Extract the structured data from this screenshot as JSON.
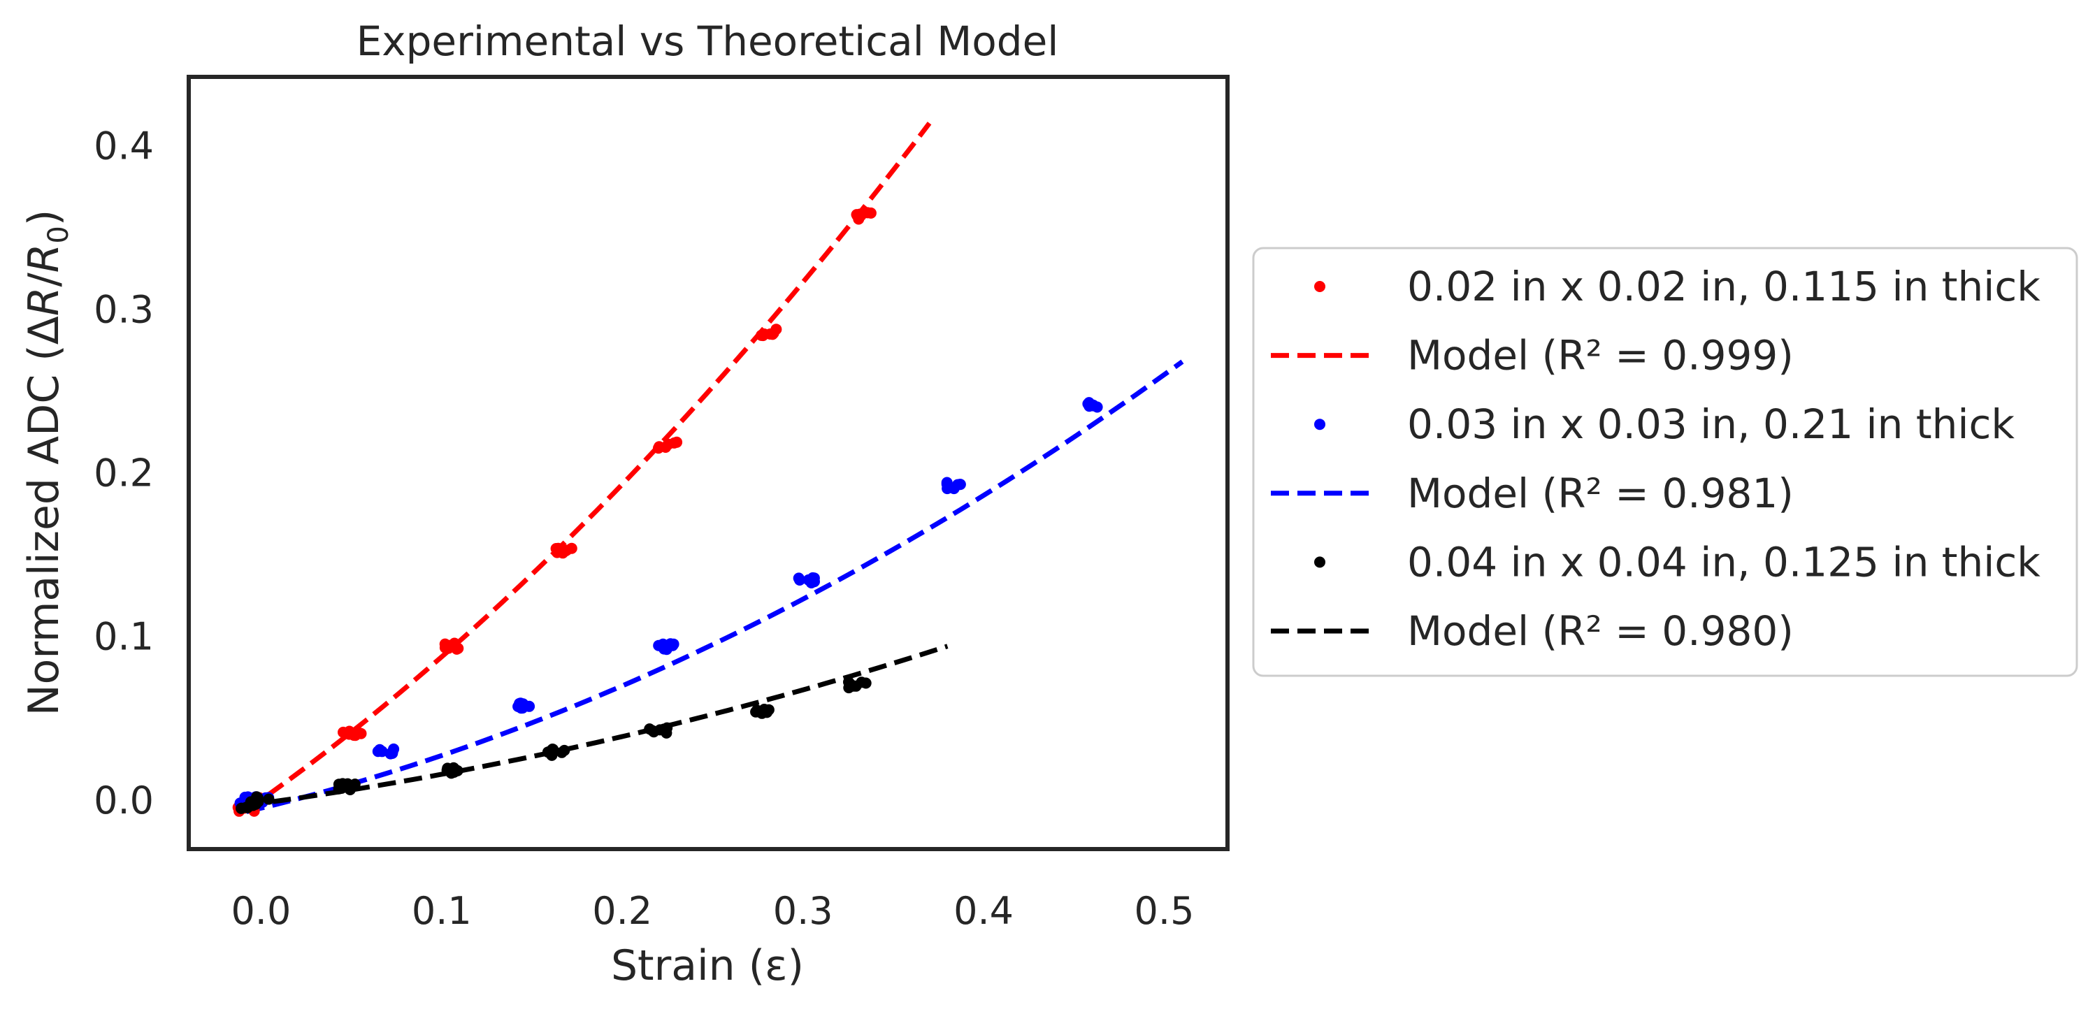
{
  "chart_data": {
    "type": "scatter",
    "title": "Experimental vs Theoretical Model",
    "xlabel": "Strain (ε)",
    "ylabel_main": "Normalized ADC (Δ",
    "ylabel_r": "R",
    "ylabel_slash": "/",
    "ylabel_r0": "R",
    "ylabel_sub": "0",
    "ylabel_close": ")",
    "xlim": [
      -0.04,
      0.535
    ],
    "ylim": [
      -0.03,
      0.442
    ],
    "xticks": [
      0.0,
      0.1,
      0.2,
      0.3,
      0.4,
      0.5
    ],
    "xtick_labels": [
      "0.0",
      "0.1",
      "0.2",
      "0.3",
      "0.4",
      "0.5"
    ],
    "yticks": [
      0.0,
      0.1,
      0.2,
      0.3,
      0.4
    ],
    "ytick_labels": [
      "0.0",
      "0.1",
      "0.2",
      "0.3",
      "0.4"
    ],
    "grid": false,
    "legend_position": "right, outside plot area",
    "series": [
      {
        "name": "0.02 in x 0.02 in, 0.115 in thick",
        "kind": "points",
        "color": "#ff0000",
        "points": [
          [
            -0.008,
            -0.005
          ],
          [
            0.0,
            0.0
          ],
          [
            0.05,
            0.04
          ],
          [
            0.105,
            0.094
          ],
          [
            0.167,
            0.153
          ],
          [
            0.225,
            0.217
          ],
          [
            0.282,
            0.286
          ],
          [
            0.335,
            0.357
          ]
        ]
      },
      {
        "name": "Model (R² = 0.999)",
        "kind": "model",
        "color": "#ff0000",
        "dash": true,
        "x_range": [
          -0.008,
          0.37
        ],
        "coefficients": [
          0.0,
          0.785,
          0.9
        ]
      },
      {
        "name": "0.03 in x 0.03 in, 0.21 in thick",
        "kind": "points",
        "color": "#0000ff",
        "points": [
          [
            -0.008,
            0.0
          ],
          [
            0.0,
            0.0
          ],
          [
            0.07,
            0.03
          ],
          [
            0.145,
            0.058
          ],
          [
            0.225,
            0.094
          ],
          [
            0.303,
            0.134
          ],
          [
            0.383,
            0.192
          ],
          [
            0.458,
            0.241
          ]
        ]
      },
      {
        "name": "Model (R² = 0.981)",
        "kind": "model",
        "color": "#0000ff",
        "dash": true,
        "x_range": [
          -0.008,
          0.51
        ],
        "coefficients": [
          -0.005,
          0.27,
          0.52
        ]
      },
      {
        "name": "0.04 in x 0.04 in, 0.125 in thick",
        "kind": "points",
        "color": "#000000",
        "points": [
          [
            -0.008,
            -0.003
          ],
          [
            0.0,
            0.0
          ],
          [
            0.048,
            0.008
          ],
          [
            0.104,
            0.018
          ],
          [
            0.163,
            0.029
          ],
          [
            0.22,
            0.042
          ],
          [
            0.276,
            0.055
          ],
          [
            0.33,
            0.07
          ]
        ]
      },
      {
        "name": "Model (R² = 0.980)",
        "kind": "model",
        "color": "#000000",
        "dash": true,
        "x_range": [
          -0.008,
          0.38
        ],
        "coefficients": [
          -0.002,
          0.15,
          0.27
        ]
      }
    ]
  }
}
